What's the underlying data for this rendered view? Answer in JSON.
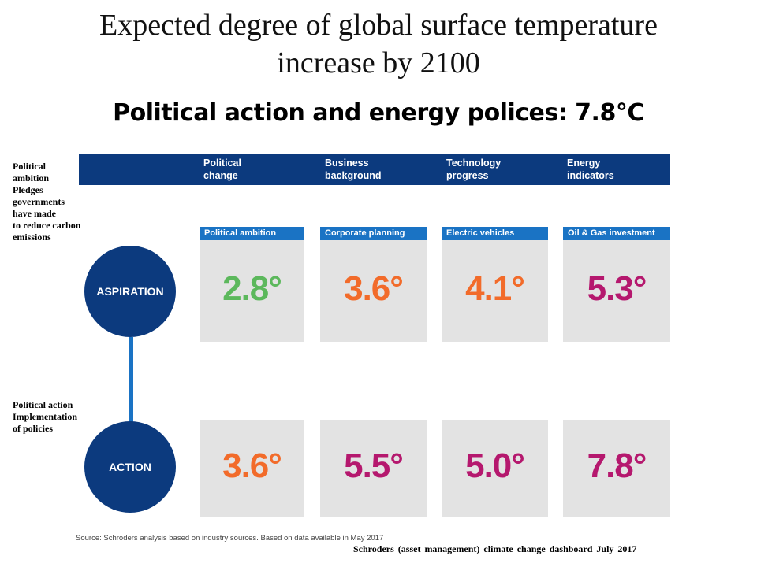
{
  "title": "Expected degree of global surface temperature\nincrease by 2100",
  "subtitle": "Political action and  energy polices: 7.8°C",
  "notes": {
    "aspiration": "Political\nambition\nPledges\ngovernments\nhave made\nto reduce carbon\nemissions",
    "action": "Political action\nImplementation\nof policies"
  },
  "columns": [
    {
      "header": "Political\nchange"
    },
    {
      "header": "Business\nbackground"
    },
    {
      "header": "Technology\nprogress"
    },
    {
      "header": "Energy\nindicators"
    }
  ],
  "rows": {
    "aspiration": {
      "label": "ASPIRATION",
      "cards": [
        {
          "label": "Political ambition",
          "value": "2.8°",
          "color": "#5cb85c"
        },
        {
          "label": "Corporate planning",
          "value": "3.6°",
          "color": "#f26b2a"
        },
        {
          "label": "Electric vehicles",
          "value": "4.1°",
          "color": "#f26b2a"
        },
        {
          "label": "Oil & Gas investment",
          "value": "5.3°",
          "color": "#b5186e"
        }
      ]
    },
    "action": {
      "label": "ACTION",
      "cards": [
        {
          "value": "3.6°",
          "color": "#f26b2a"
        },
        {
          "value": "5.5°",
          "color": "#b5186e"
        },
        {
          "value": "5.0°",
          "color": "#b5186e"
        },
        {
          "value": "7.8°",
          "color": "#b5186e"
        }
      ]
    }
  },
  "source": "Source: Schroders analysis based on industry sources. Based on data available in May 2017",
  "credit": "Schroders (asset management) climate change dashboard July 2017",
  "colors": {
    "navy": "#0c3a7e",
    "blue": "#1a73c4",
    "card_bg": "#e3e3e3"
  }
}
